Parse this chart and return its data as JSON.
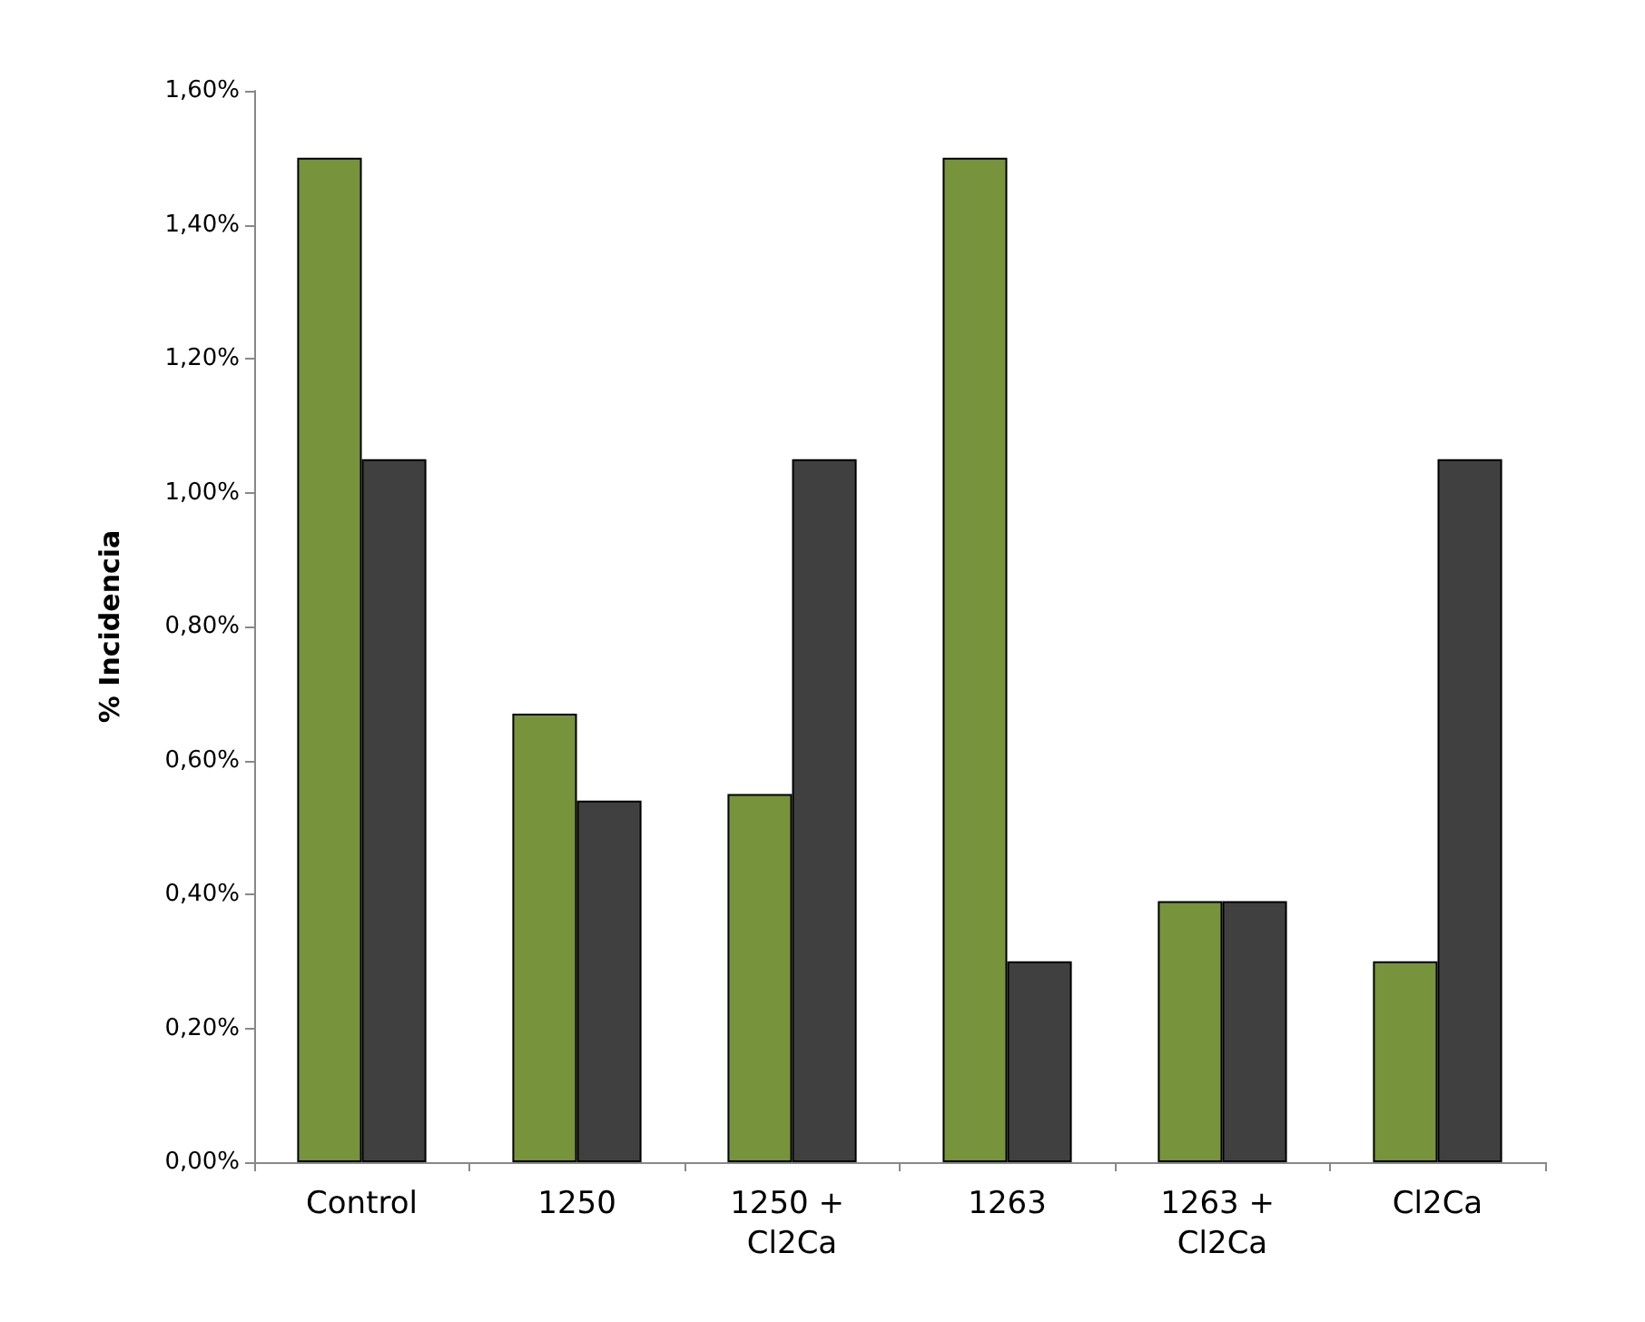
{
  "chart_data": {
    "type": "bar",
    "ylabel": "% Incidencia",
    "categories": [
      "Control",
      "1250",
      "1250 + Cl2Ca",
      "1263",
      "1263 + Cl2Ca",
      "Cl2Ca"
    ],
    "series": [
      {
        "color": "#77933c",
        "values": [
          1.5,
          0.67,
          0.55,
          1.5,
          0.39,
          0.3
        ]
      },
      {
        "color": "#404040",
        "values": [
          1.05,
          0.54,
          1.05,
          0.3,
          0.39,
          1.05
        ]
      }
    ],
    "ylim": [
      0,
      1.6
    ],
    "yticks": [
      {
        "value": 0,
        "label": "0,00%"
      },
      {
        "value": 0.2,
        "label": "0,20%"
      },
      {
        "value": 0.4,
        "label": "0,40%"
      },
      {
        "value": 0.6,
        "label": "0,60%"
      },
      {
        "value": 0.8,
        "label": "0,80%"
      },
      {
        "value": 1.0,
        "label": "1,00%"
      },
      {
        "value": 1.2,
        "label": "1,20%"
      },
      {
        "value": 1.4,
        "label": "1,40%"
      },
      {
        "value": 1.6,
        "label": "1,60%"
      }
    ],
    "grid": false
  }
}
